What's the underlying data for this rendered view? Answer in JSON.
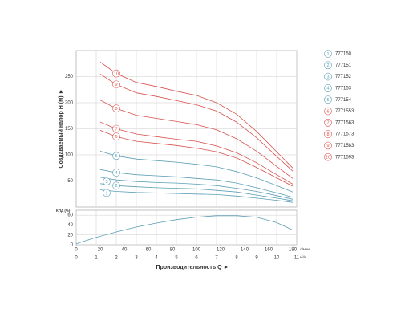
{
  "chart_data": [
    {
      "type": "line",
      "y_label": "Создаваемый напор Н (м) ►",
      "x": [
        1.2,
        2,
        3,
        4,
        5,
        6,
        7,
        8,
        9,
        10,
        10.8
      ],
      "xlim": [
        0,
        11
      ],
      "xticks": [
        1,
        2,
        3,
        4,
        5,
        6,
        7,
        8,
        9,
        10,
        11
      ],
      "ylim": [
        0,
        300
      ],
      "yticks": [
        50,
        100,
        150,
        200,
        250
      ],
      "grid": true,
      "series": [
        {
          "number": "1",
          "name": "777150",
          "color": "#5b9fb5",
          "values": [
            33,
            30,
            28,
            27,
            26,
            25,
            24,
            21,
            17,
            13,
            9
          ]
        },
        {
          "number": "2",
          "name": "777151",
          "color": "#5b9fb5",
          "values": [
            45,
            41,
            39,
            37,
            36,
            35,
            32,
            29,
            23,
            17,
            12
          ]
        },
        {
          "number": "3",
          "name": "777152",
          "color": "#5b9fb5",
          "values": [
            57,
            52,
            49,
            47,
            46,
            44,
            41,
            36,
            30,
            22,
            15
          ]
        },
        {
          "number": "4",
          "name": "777153",
          "color": "#5b9fb5",
          "values": [
            72,
            66,
            62,
            60,
            58,
            55,
            52,
            46,
            37,
            27,
            19
          ]
        },
        {
          "number": "5",
          "name": "777154",
          "color": "#5b9fb5",
          "values": [
            107,
            98,
            92,
            89,
            86,
            82,
            77,
            68,
            56,
            41,
            29
          ]
        },
        {
          "number": "6",
          "name": "7771553",
          "color": "#d9534f",
          "values": [
            147,
            135,
            126,
            122,
            118,
            113,
            106,
            94,
            76,
            56,
            40
          ]
        },
        {
          "number": "7",
          "name": "7771563",
          "color": "#d9534f",
          "values": [
            163,
            150,
            140,
            135,
            130,
            126,
            117,
            104,
            85,
            62,
            44
          ]
        },
        {
          "number": "8",
          "name": "7771573",
          "color": "#d9534f",
          "values": [
            205,
            189,
            176,
            170,
            164,
            158,
            148,
            131,
            107,
            78,
            55
          ]
        },
        {
          "number": "9",
          "name": "7771583",
          "color": "#d9534f",
          "values": [
            255,
            235,
            219,
            212,
            204,
            196,
            184,
            163,
            133,
            97,
            69
          ]
        },
        {
          "number": "10",
          "name": "7771593",
          "color": "#d9534f",
          "values": [
            278,
            256,
            239,
            231,
            222,
            214,
            200,
            178,
            145,
            106,
            75
          ]
        }
      ]
    },
    {
      "type": "line",
      "y_label": "КПД (%)",
      "x_label": "Производительность Q ►",
      "x": [
        0,
        1,
        2,
        3,
        4,
        5,
        6,
        7,
        8,
        9,
        10,
        10.8
      ],
      "values": [
        2,
        15,
        26,
        36,
        44,
        51,
        56,
        59,
        59,
        56,
        45,
        30
      ],
      "color": "#5b9fb5",
      "xlim": [
        0,
        11
      ],
      "xticks": [
        0,
        1,
        2,
        3,
        4,
        5,
        6,
        7,
        8,
        9,
        10,
        11
      ],
      "x_unit": "м³/ч",
      "x2lim": [
        0,
        183.3
      ],
      "x2ticks": [
        0,
        20,
        40,
        60,
        80,
        100,
        120,
        140,
        160,
        180
      ],
      "x2_unit": "л/мин",
      "ylim": [
        0,
        70
      ],
      "yticks": [
        0,
        20,
        40,
        60
      ],
      "grid": true
    }
  ]
}
